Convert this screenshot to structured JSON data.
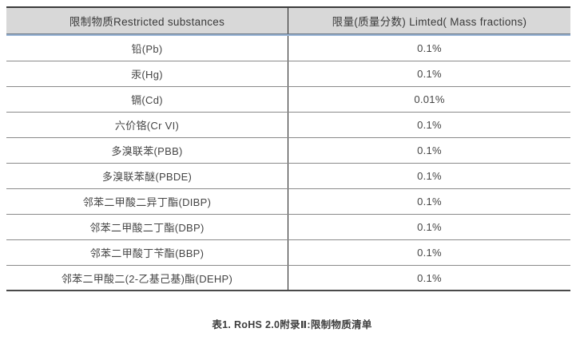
{
  "colors": {
    "header_bg": "#d8d8d8",
    "top_border": "#3b3b3b",
    "header_underline": "#5f6e7e",
    "accent_blue_line": "#9db8d8",
    "row_divider": "#8a8a8a",
    "bottom_border": "#4a4a4a",
    "column_divider": "#1f1f1f",
    "text": "#454545",
    "caption_text": "#3d3d3d",
    "background": "#ffffff"
  },
  "table": {
    "headers": [
      "限制物质Restricted substances",
      "限量(质量分数) Limted( Mass fractions)"
    ],
    "rows": [
      {
        "substance": "铅(Pb)",
        "limit": "0.1%"
      },
      {
        "substance": "汞(Hg)",
        "limit": "0.1%"
      },
      {
        "substance": "镉(Cd)",
        "limit": "0.01%"
      },
      {
        "substance": "六价铬(Cr VI)",
        "limit": "0.1%"
      },
      {
        "substance": "多溴联苯(PBB)",
        "limit": "0.1%"
      },
      {
        "substance": "多溴联苯醚(PBDE)",
        "limit": "0.1%"
      },
      {
        "substance": "邻苯二甲酸二异丁酯(DIBP)",
        "limit": "0.1%"
      },
      {
        "substance": "邻苯二甲酸二丁酯(DBP)",
        "limit": "0.1%"
      },
      {
        "substance": "邻苯二甲酸丁苄酯(BBP)",
        "limit": "0.1%"
      },
      {
        "substance": "邻苯二甲酸二(2-乙基己基)酯(DEHP)",
        "limit": "0.1%"
      }
    ]
  },
  "caption": "表1. RoHS 2.0附录Ⅱ:限制物质清单"
}
